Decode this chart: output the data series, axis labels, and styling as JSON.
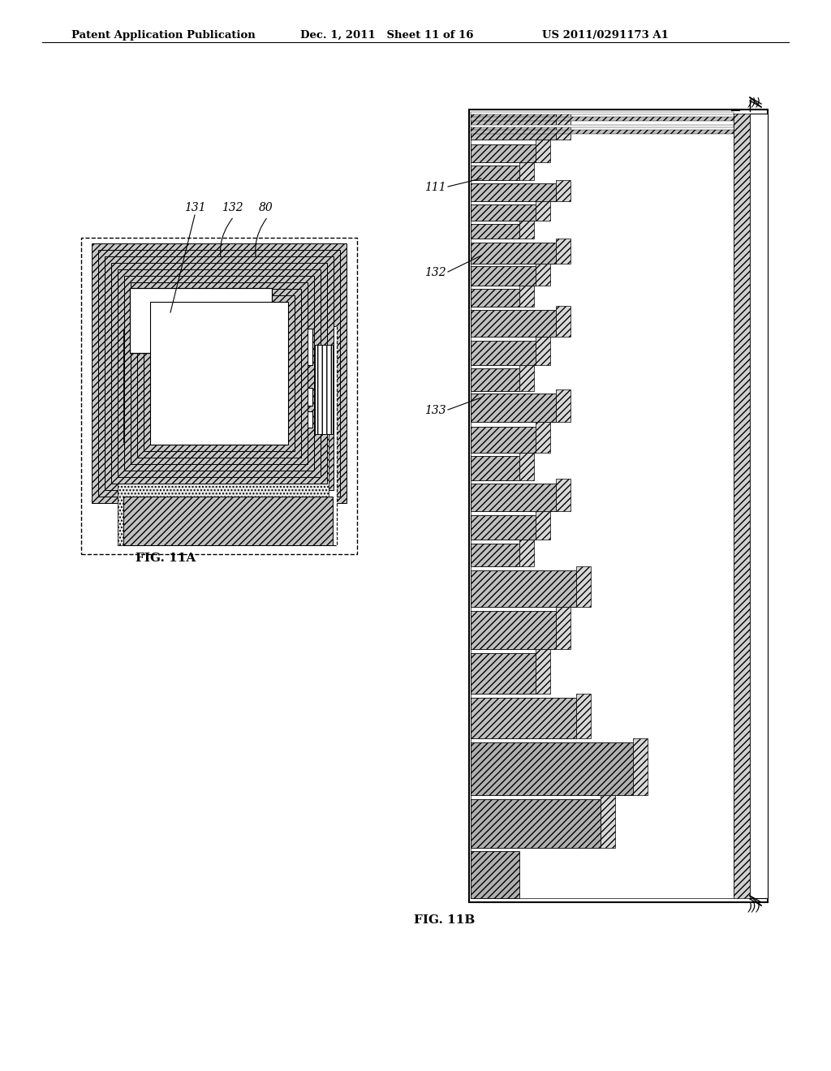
{
  "bg_color": "#ffffff",
  "header_left": "Patent Application Publication",
  "header_mid": "Dec. 1, 2011   Sheet 11 of 16",
  "header_right": "US 2011/0291173 A1",
  "fig11a_label": "FIG. 11A",
  "fig11b_label": "FIG. 11B",
  "label_131": "131",
  "label_132": "132",
  "label_80": "80",
  "label_111": "111",
  "label_132b": "132",
  "label_133": "133"
}
